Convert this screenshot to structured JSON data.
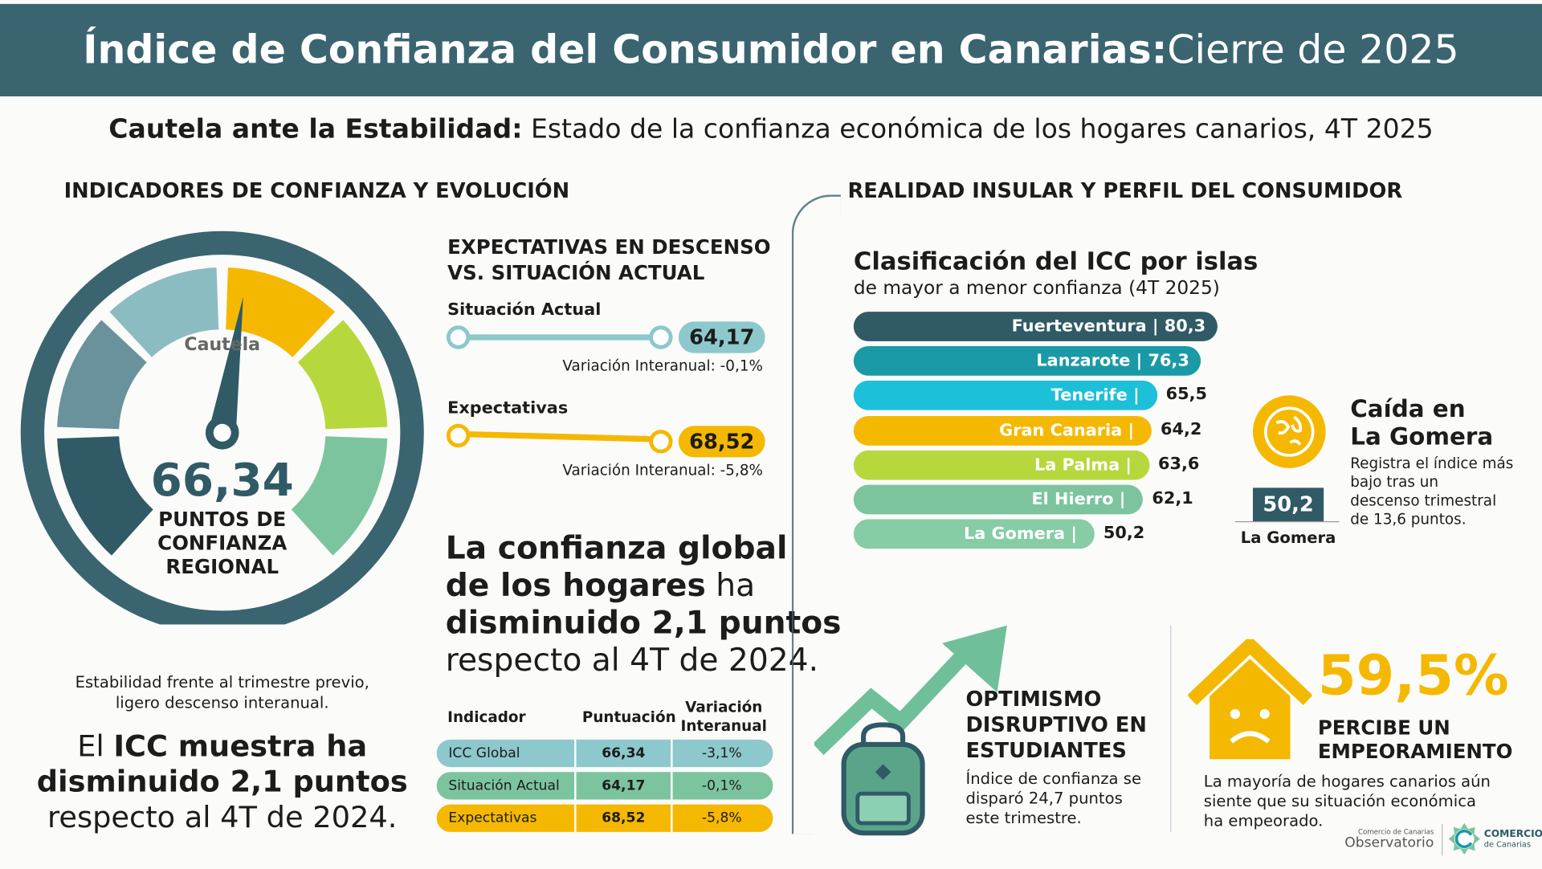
{
  "header": {
    "title_bold": "Índice de Confianza del Consumidor en Canarias:",
    "title_rest": " Cierre de 2025"
  },
  "subtitle": {
    "bold": "Cautela ante la Estabilidad:",
    "rest": " Estado de la confianza económica de los hogares canarios, 4T 2025"
  },
  "left": {
    "section_title": "INDICADORES DE CONFIANZA Y EVOLUCIÓN",
    "gauge": {
      "zone_label": "Cautela",
      "value": "66,34",
      "label_lines": [
        "PUNTOS DE",
        "CONFIANZA",
        "REGIONAL"
      ],
      "needle_value": 66.34,
      "segment_colors": [
        "#2f5a66",
        "#6a929c",
        "#8bbcc2",
        "#f5b800",
        "#b6d83c",
        "#7cc49e"
      ],
      "ring_color": "#3a6470"
    },
    "caption_lines": [
      "Estabilidad frente al trimestre previo,",
      "ligero descenso interanual."
    ],
    "statement": {
      "l1_a": "El ",
      "l1_b": "ICC muestra ha",
      "l2": "disminuido 2,1 puntos",
      "l3": "respecto al 4T de 2024."
    }
  },
  "middle": {
    "title_lines": [
      "EXPECTATIVAS EN DESCENSO",
      "VS. SITUACIÓN ACTUAL"
    ],
    "sliders": [
      {
        "label": "Situación Actual",
        "value": "64,17",
        "variation": "Variación Interanual: -0,1%",
        "color": "#8cc8cc"
      },
      {
        "label": "Expectativas",
        "value": "68,52",
        "variation": "Variación Interanual: -5,8%",
        "color": "#f5b800"
      }
    ],
    "headline": {
      "b1": "La confianza global",
      "b2": "de los hogares",
      "r2": " ha",
      "b3": "disminuido 2,1 puntos",
      "r4": "respecto al 4T de 2024."
    },
    "table": {
      "headers": [
        "Indicador",
        "Puntuación",
        "Variación Interanual"
      ],
      "rows": [
        {
          "name": "ICC Global",
          "score": "66,34",
          "var": "-3,1%",
          "color": "#8cc8cc"
        },
        {
          "name": "Situación Actual",
          "score": "64,17",
          "var": "-0,1%",
          "color": "#7cc49e"
        },
        {
          "name": "Expectativas",
          "score": "68,52",
          "var": "-5,8%",
          "color": "#f5b800"
        }
      ]
    }
  },
  "right": {
    "section_title": "REALIDAD INSULAR Y PERFIL DEL CONSUMIDOR",
    "ranking": {
      "title": "Clasificación del ICC por islas",
      "subtitle": "de mayor a menor confianza (4T 2025)",
      "islands": [
        {
          "name": "Fuerteventura",
          "value": 80.3,
          "label": "80,3",
          "color": "#2f5a66"
        },
        {
          "name": "Lanzarote",
          "value": 76.3,
          "label": "76,3",
          "color": "#1a9aa6"
        },
        {
          "name": "Tenerife",
          "value": 65.5,
          "label": "65,5",
          "color": "#1cc0d8"
        },
        {
          "name": "Gran Canaria",
          "value": 64.2,
          "label": "64,2",
          "color": "#f5b800"
        },
        {
          "name": "La Palma",
          "value": 63.6,
          "label": "63,6",
          "color": "#b6d83c"
        },
        {
          "name": "El Hierro",
          "value": 62.1,
          "label": "62,1",
          "color": "#7cc49e"
        },
        {
          "name": "La Gomera",
          "value": 50.2,
          "label": "50,2",
          "color": "#86cca4"
        }
      ]
    },
    "gomera": {
      "title_lines": [
        "Caída en",
        "La Gomera"
      ],
      "text_lines": [
        "Registra el índice más",
        "bajo tras un",
        "descenso trimestral",
        "de 13,6 puntos."
      ],
      "value": "50,2",
      "island": "La Gomera"
    },
    "students": {
      "title_lines": [
        "OPTIMISMO",
        "DISRUPTIVO EN",
        "ESTUDIANTES"
      ],
      "text_lines": [
        "Índice de confianza se",
        "disparó 24,7 puntos",
        "este trimestre."
      ]
    },
    "worsening": {
      "percent": "59,5%",
      "title_lines": [
        "PERCIBE UN",
        "EMPEORAMIENTO"
      ],
      "text_lines": [
        "La mayoría de hogares canarios aún",
        "siente que su situación económica",
        "ha empeorado."
      ]
    },
    "logos": {
      "obs_small": "Comercio de Canarias",
      "obs_big": "Observatorio",
      "brand_big": "COMERCIO",
      "brand_small": "de Canarias"
    }
  }
}
